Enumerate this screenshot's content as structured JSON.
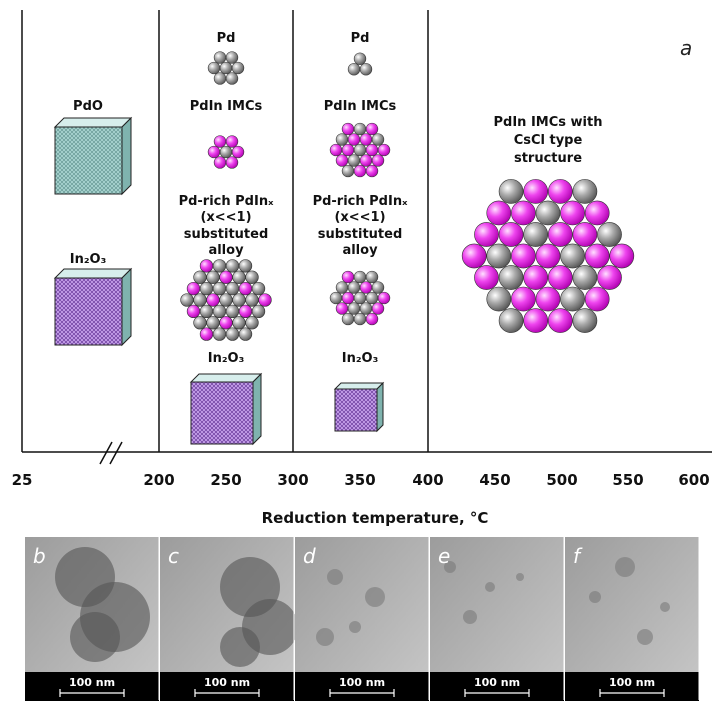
{
  "panel_a": {
    "label": "a",
    "col1": {
      "oxide1": "PdO",
      "oxide2": "In₂O₃"
    },
    "col2": {
      "pd": "Pd",
      "imc": "PdIn IMCs",
      "alloy": [
        "Pd-rich PdInₓ",
        "(x<<1)",
        "substituted",
        "alloy"
      ],
      "oxide": "In₂O₃"
    },
    "col3": {
      "pd": "Pd",
      "imc": "PdIn IMCs",
      "alloy": [
        "Pd-rich PdInₓ",
        "(x<<1)",
        "substituted",
        "alloy"
      ],
      "oxide": "In₂O₃"
    },
    "col4": {
      "structure": [
        "PdIn IMCs with",
        "CsCl type",
        "structure"
      ]
    },
    "axis": {
      "ticks": [
        "25",
        "200",
        "250",
        "300",
        "350",
        "400",
        "450",
        "500",
        "550",
        "600"
      ],
      "title": "Reduction temperature, °C"
    }
  },
  "micrographs": [
    {
      "label": "b",
      "scale_bar": "100 nm"
    },
    {
      "label": "c",
      "scale_bar": "100 nm"
    },
    {
      "label": "d",
      "scale_bar": "100 nm"
    },
    {
      "label": "e",
      "scale_bar": "100 nm"
    },
    {
      "label": "f",
      "scale_bar": "100 nm"
    }
  ]
}
